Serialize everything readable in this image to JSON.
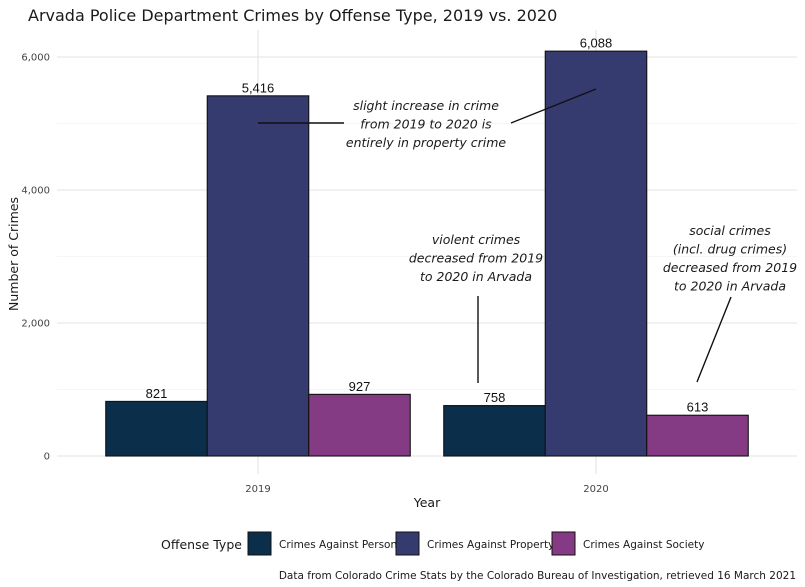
{
  "chart_data": {
    "type": "bar",
    "title": "Arvada Police Department Crimes by Offense Type, 2019 vs. 2020",
    "xlabel": "Year",
    "ylabel": "Number of Crimes",
    "categories": [
      "2019",
      "2020"
    ],
    "series": [
      {
        "name": "Crimes Against Person",
        "color": "#0b2e4b",
        "values": [
          821,
          758
        ],
        "labels": [
          "821",
          "758"
        ]
      },
      {
        "name": "Crimes Against Property",
        "color": "#353a6f",
        "values": [
          5416,
          6088
        ],
        "labels": [
          "5,416",
          "6,088"
        ]
      },
      {
        "name": "Crimes Against Society",
        "color": "#843b84",
        "values": [
          927,
          613
        ],
        "labels": [
          "927",
          "613"
        ]
      }
    ],
    "ylim": [
      0,
      6088
    ],
    "yticks": [
      0,
      2000,
      4000,
      6000
    ],
    "ytick_labels": [
      "0",
      "2,000",
      "4,000",
      "6,000"
    ],
    "grid": true,
    "legend": {
      "title": "Offense Type",
      "position": "bottom"
    },
    "annotations": [
      {
        "lines": [
          "slight increase in crime",
          "from 2019 to 2020 is",
          "entirely in property crime"
        ]
      },
      {
        "lines": [
          "violent crimes",
          "decreased from 2019",
          "to 2020 in Arvada"
        ]
      },
      {
        "lines": [
          "social crimes",
          "(incl. drug crimes)",
          "decreased from 2019",
          "to 2020 in Arvada"
        ]
      }
    ],
    "caption": "Data from Colorado Crime Stats by the Colorado Bureau of Investigation, retrieved 16 March 2021"
  }
}
